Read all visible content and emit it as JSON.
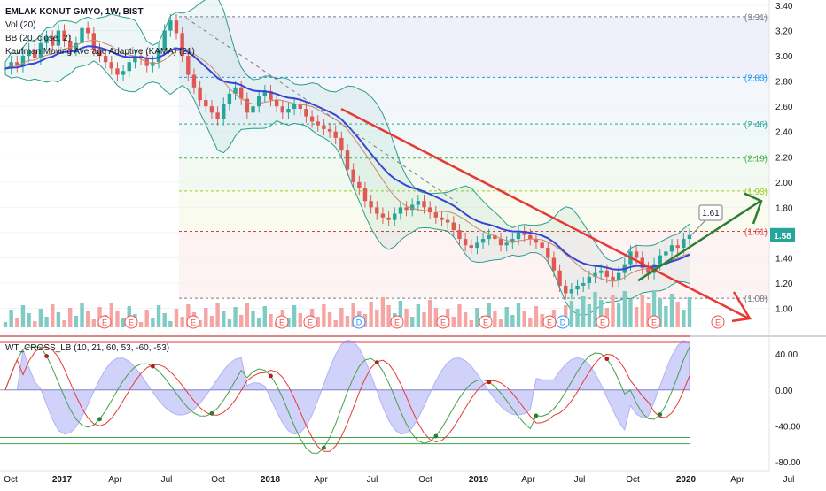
{
  "legend": {
    "symbol": "EMLAK KONUT GMYO, 1W, BIST",
    "vol": "Vol (20)",
    "bb": "BB (20, close, 2)",
    "kama": "Kaufman Moving Average Adaptive (KAMA) (21)"
  },
  "osc_legend": "WT_CROSS_LB (10, 21, 60, 53, -60, -53)",
  "colors": {
    "up": "#26a69a",
    "down": "#ef5350",
    "bb": "#2a9d8f",
    "kama": "#3845d4",
    "trend_red": "#e53935",
    "trend_green": "#2e7d32",
    "price_tag": "#26a69a"
  },
  "chart_data": [
    {
      "type": "candlestick",
      "title": "EMLAK KONUT GMYO, 1W, BIST",
      "ylim": [
        0.85,
        3.4
      ],
      "yticks": [
        "3.40",
        "3.20",
        "3.00",
        "2.80",
        "2.60",
        "2.40",
        "2.20",
        "2.00",
        "1.80",
        "1.60",
        "1.40",
        "1.20",
        "1.00"
      ],
      "xticks": [
        "Oct",
        "2017",
        "Apr",
        "Jul",
        "Oct",
        "2018",
        "Apr",
        "Jul",
        "Oct",
        "2019",
        "Apr",
        "Jul",
        "Oct",
        "2020",
        "Apr",
        "Jul"
      ],
      "fib_levels": [
        {
          "value": 3.31,
          "label": "(3.31)",
          "color": "#787b86"
        },
        {
          "value": 2.83,
          "label": "(2.83)",
          "color": "#2196f3"
        },
        {
          "value": 2.46,
          "label": "(2.46)",
          "color": "#26a69a"
        },
        {
          "value": 2.19,
          "label": "(2.19)",
          "color": "#4caf50"
        },
        {
          "value": 1.93,
          "label": "(1.93)",
          "color": "#9ccc2a"
        },
        {
          "value": 1.61,
          "label": "(1.61)",
          "color": "#e53935"
        },
        {
          "value": 1.08,
          "label": "(1.08)",
          "color": "#787b86"
        }
      ],
      "last_price": "1.58",
      "callout": "1.61",
      "closes": [
        2.9,
        2.95,
        2.92,
        3.0,
        3.05,
        2.98,
        3.1,
        3.15,
        3.08,
        3.2,
        3.12,
        3.05,
        3.1,
        3.22,
        3.18,
        3.05,
        3.0,
        2.95,
        2.9,
        2.85,
        2.88,
        2.95,
        3.0,
        2.98,
        2.92,
        2.95,
        3.05,
        3.2,
        3.28,
        3.18,
        3.0,
        2.85,
        2.75,
        2.65,
        2.6,
        2.55,
        2.5,
        2.62,
        2.7,
        2.75,
        2.66,
        2.55,
        2.6,
        2.68,
        2.72,
        2.65,
        2.6,
        2.55,
        2.58,
        2.62,
        2.58,
        2.52,
        2.48,
        2.45,
        2.42,
        2.4,
        2.35,
        2.25,
        2.1,
        2.0,
        1.95,
        1.85,
        1.8,
        1.75,
        1.72,
        1.7,
        1.75,
        1.8,
        1.78,
        1.82,
        1.85,
        1.8,
        1.76,
        1.72,
        1.7,
        1.68,
        1.62,
        1.55,
        1.5,
        1.48,
        1.52,
        1.55,
        1.58,
        1.55,
        1.5,
        1.52,
        1.55,
        1.6,
        1.58,
        1.55,
        1.52,
        1.48,
        1.4,
        1.3,
        1.18,
        1.12,
        1.15,
        1.18,
        1.2,
        1.25,
        1.28,
        1.3,
        1.25,
        1.22,
        1.28,
        1.35,
        1.45,
        1.4,
        1.32,
        1.28,
        1.35,
        1.42,
        1.45,
        1.5,
        1.48,
        1.55,
        1.58
      ]
    },
    {
      "type": "line",
      "title": "WT_CROSS_LB (10, 21, 60, 53, -60, -53)",
      "ylim": [
        -88,
        56
      ],
      "yticks": [
        "40.00",
        "0.00",
        "-40.00",
        "-80.00"
      ],
      "levels": [
        60,
        53,
        -53,
        -60
      ]
    }
  ]
}
